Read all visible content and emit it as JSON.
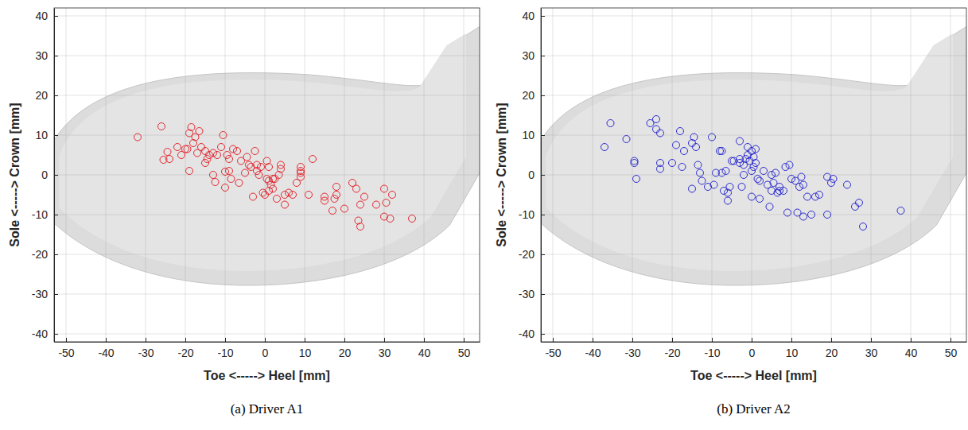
{
  "chart_data": [
    {
      "type": "scatter",
      "title": "(a) Driver A1",
      "xlabel": "Toe <-----> Heel [mm]",
      "ylabel": "Sole <-----> Crown [mm]",
      "color": "#e3262e",
      "marker": "open-circle",
      "grid": true,
      "xlim": [
        -53,
        54
      ],
      "ylim": [
        -42,
        42
      ],
      "xticks": [
        -50,
        -40,
        -30,
        -20,
        -10,
        0,
        10,
        20,
        30,
        40,
        50
      ],
      "yticks": [
        -40,
        -30,
        -20,
        -10,
        0,
        10,
        20,
        30,
        40
      ],
      "x": [
        -32,
        -26,
        -25.5,
        -24.5,
        -24,
        -22,
        -20,
        -19.5,
        -19,
        -18.5,
        -18,
        -17.5,
        -17,
        -16.5,
        -16,
        -15,
        -15,
        -14.5,
        -14,
        -13,
        -12.5,
        -12,
        -11,
        -10.5,
        -10,
        -10,
        -9.5,
        -9,
        -8.5,
        -8,
        -7,
        -6.5,
        -6,
        -5,
        -4.5,
        -4,
        -3.5,
        -3,
        -2.5,
        -2,
        -2,
        -1.5,
        -1,
        -0.5,
        0,
        0.5,
        1,
        1,
        1.5,
        2,
        2,
        2.5,
        3,
        3.5,
        4,
        4,
        5,
        5,
        6,
        7,
        8,
        9,
        9,
        9,
        9,
        12,
        11,
        15,
        15,
        17,
        18,
        18,
        20,
        22,
        23,
        24,
        23.5,
        24,
        25,
        28,
        30,
        30,
        30.5,
        32,
        31.5,
        37,
        17.5,
        0.5,
        -19,
        -21,
        -13,
        -9,
        1
      ],
      "values": [
        9.5,
        12.2,
        3.8,
        5.8,
        4,
        7,
        6.5,
        6.5,
        10.5,
        12,
        8,
        9.5,
        5.5,
        11,
        7,
        6,
        3,
        4,
        5,
        5.5,
        -1.8,
        5,
        7,
        10,
        0.8,
        -3.2,
        5,
        4,
        -1,
        6.5,
        6,
        -2,
        3.5,
        0.5,
        4.5,
        2.5,
        2,
        -5.5,
        6,
        2.5,
        1,
        0,
        2,
        -4.5,
        -5,
        -1,
        2,
        -1.5,
        -2.5,
        -1,
        -3.5,
        -1,
        -6,
        0,
        1.5,
        2.5,
        -5,
        -7.5,
        -4.5,
        -5,
        -2,
        1,
        0.5,
        -0.5,
        2,
        4,
        -5,
        -5.5,
        -6.5,
        -9,
        -3,
        -5,
        -8.5,
        -2,
        -3.5,
        -13,
        -11.5,
        -7.5,
        -5.5,
        -7.5,
        -3.5,
        -10.5,
        -7,
        -5,
        -11,
        -11,
        -6,
        3.5,
        1,
        5,
        0,
        1,
        -4
      ]
    },
    {
      "type": "scatter",
      "title": "(b) Driver A2",
      "xlabel": "Toe <-----> Heel [mm]",
      "ylabel": "Sole <-----> Crown [mm]",
      "color": "#2a2ad2",
      "marker": "open-circle",
      "grid": true,
      "xlim": [
        -53,
        54
      ],
      "ylim": [
        -42,
        42
      ],
      "xticks": [
        -50,
        -40,
        -30,
        -20,
        -10,
        0,
        10,
        20,
        30,
        40,
        50
      ],
      "yticks": [
        -40,
        -30,
        -20,
        -10,
        0,
        10,
        20,
        30,
        40
      ],
      "x": [
        -37,
        -35.5,
        -31.5,
        -29.5,
        -29.5,
        -29,
        -25.5,
        -24,
        -24,
        -23,
        -23,
        -23,
        -20,
        -19,
        -18,
        -17.5,
        -17,
        -15,
        -15,
        -14.5,
        -14,
        -13.5,
        -13,
        -12.5,
        -11,
        -10,
        -9.5,
        -8,
        -7.5,
        -7.5,
        -7,
        -6.5,
        -6,
        -6,
        -5.5,
        -5,
        -4.5,
        -3,
        -3,
        -2.5,
        -2,
        -2,
        -1.5,
        -1,
        -1,
        -0.5,
        0,
        0,
        0,
        0.5,
        0.5,
        1,
        1,
        1.5,
        2,
        2,
        3,
        4,
        4.5,
        5,
        5,
        5.5,
        6,
        6.5,
        7,
        7,
        8,
        8.5,
        9,
        9.5,
        10,
        11,
        11.5,
        12,
        12.5,
        13,
        13,
        14,
        15,
        16,
        17,
        19,
        19,
        20,
        20.5,
        24,
        26,
        27,
        28,
        37.5,
        -3,
        -9
      ],
      "values": [
        7,
        13,
        9,
        3.5,
        3,
        -1,
        13,
        14,
        11.5,
        10.5,
        3,
        1.5,
        3,
        7.5,
        11,
        2,
        6,
        -3.5,
        8,
        9.5,
        7,
        2.5,
        0.5,
        -1.5,
        -3,
        9.5,
        -2.5,
        6,
        6,
        0.5,
        -4,
        1,
        -6.5,
        -4.5,
        -3,
        3.5,
        3.5,
        4,
        8.5,
        -3,
        2.5,
        0,
        4,
        5,
        7,
        3.5,
        6,
        1,
        -5.5,
        4.5,
        2,
        6.5,
        3,
        -1,
        -1.5,
        -6,
        1,
        -2.5,
        -8,
        0,
        -4,
        -2,
        0.5,
        -4.5,
        -3,
        -4,
        -4,
        2,
        -9.5,
        2.5,
        -1,
        -1.5,
        -9.5,
        -3,
        -0.5,
        -2.5,
        -10.5,
        -5.5,
        -10,
        -5.5,
        -5,
        -0.5,
        -10,
        -2,
        -1,
        -2.5,
        -8,
        -7,
        -13,
        -9,
        3,
        0.5
      ]
    }
  ]
}
